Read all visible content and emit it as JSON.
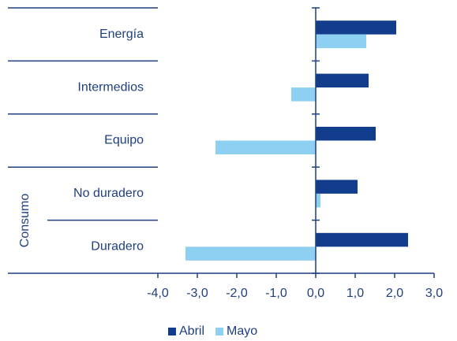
{
  "chart_data": {
    "type": "hbar",
    "categories": [
      "Energía",
      "Intermedios",
      "Equipo",
      "No duradero",
      "Duradero"
    ],
    "group_label": "Consumo",
    "series": [
      {
        "name": "Abril",
        "color": "#123c8c",
        "values": [
          2.04,
          1.34,
          1.52,
          1.06,
          2.34
        ]
      },
      {
        "name": "Mayo",
        "color": "#8dd0f2",
        "values": [
          1.28,
          -0.62,
          -2.54,
          0.12,
          -3.3
        ]
      }
    ],
    "xlim": [
      -4,
      3
    ],
    "xticks": [
      {
        "value": -4,
        "label": "-4,0"
      },
      {
        "value": -3,
        "label": "-3,0"
      },
      {
        "value": -2,
        "label": "-2,0"
      },
      {
        "value": -1,
        "label": "-1,0"
      },
      {
        "value": 0,
        "label": "0,0"
      },
      {
        "value": 1,
        "label": "1,0"
      },
      {
        "value": 2,
        "label": "2,0"
      },
      {
        "value": 3,
        "label": "3,0"
      }
    ],
    "legend": "bottom"
  }
}
